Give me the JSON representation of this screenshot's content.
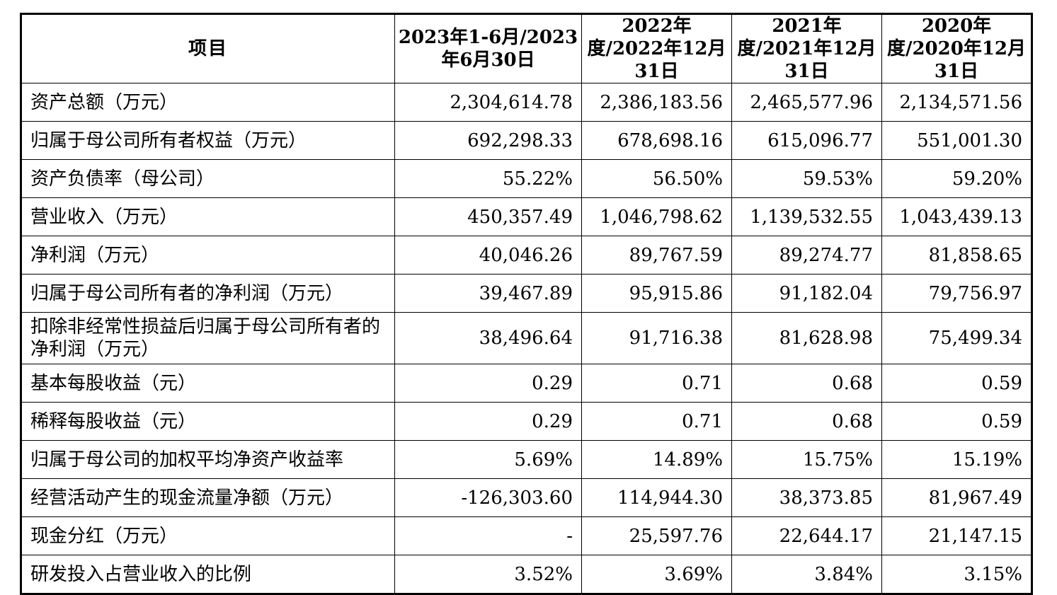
{
  "table": {
    "headers": [
      "项目",
      "2023年1-6月/2023年6月30日",
      "2022年度/2022年12月31日",
      "2021年度/2021年12月31日",
      "2020年度/2020年12月31日"
    ],
    "rows": [
      {
        "label": "资产总额（万元）",
        "values": [
          "2,304,614.78",
          "2,386,183.56",
          "2,465,577.96",
          "2,134,571.56"
        ]
      },
      {
        "label": "归属于母公司所有者权益（万元）",
        "values": [
          "692,298.33",
          "678,698.16",
          "615,096.77",
          "551,001.30"
        ]
      },
      {
        "label": "资产负债率（母公司）",
        "values": [
          "55.22%",
          "56.50%",
          "59.53%",
          "59.20%"
        ]
      },
      {
        "label": "营业收入（万元）",
        "values": [
          "450,357.49",
          "1,046,798.62",
          "1,139,532.55",
          "1,043,439.13"
        ]
      },
      {
        "label": "净利润（万元）",
        "values": [
          "40,046.26",
          "89,767.59",
          "89,274.77",
          "81,858.65"
        ]
      },
      {
        "label": "归属于母公司所有者的净利润（万元）",
        "values": [
          "39,467.89",
          "95,915.86",
          "91,182.04",
          "79,756.97"
        ]
      },
      {
        "label": "扣除非经常性损益后归属于母公司所有者的净利润（万元）",
        "values": [
          "38,496.64",
          "91,716.38",
          "81,628.98",
          "75,499.34"
        ]
      },
      {
        "label": "基本每股收益（元）",
        "values": [
          "0.29",
          "0.71",
          "0.68",
          "0.59"
        ]
      },
      {
        "label": "稀释每股收益（元）",
        "values": [
          "0.29",
          "0.71",
          "0.68",
          "0.59"
        ]
      },
      {
        "label": "归属于母公司的加权平均净资产收益率",
        "values": [
          "5.69%",
          "14.89%",
          "15.75%",
          "15.19%"
        ]
      },
      {
        "label": "经营活动产生的现金流量净额（万元）",
        "values": [
          "-126,303.60",
          "114,944.30",
          "38,373.85",
          "81,967.49"
        ]
      },
      {
        "label": "现金分红（万元）",
        "values": [
          "-",
          "25,597.76",
          "22,644.17",
          "21,147.15"
        ]
      },
      {
        "label": "研发投入占营业收入的比例",
        "values": [
          "3.52%",
          "3.69%",
          "3.84%",
          "3.15%"
        ]
      }
    ]
  }
}
